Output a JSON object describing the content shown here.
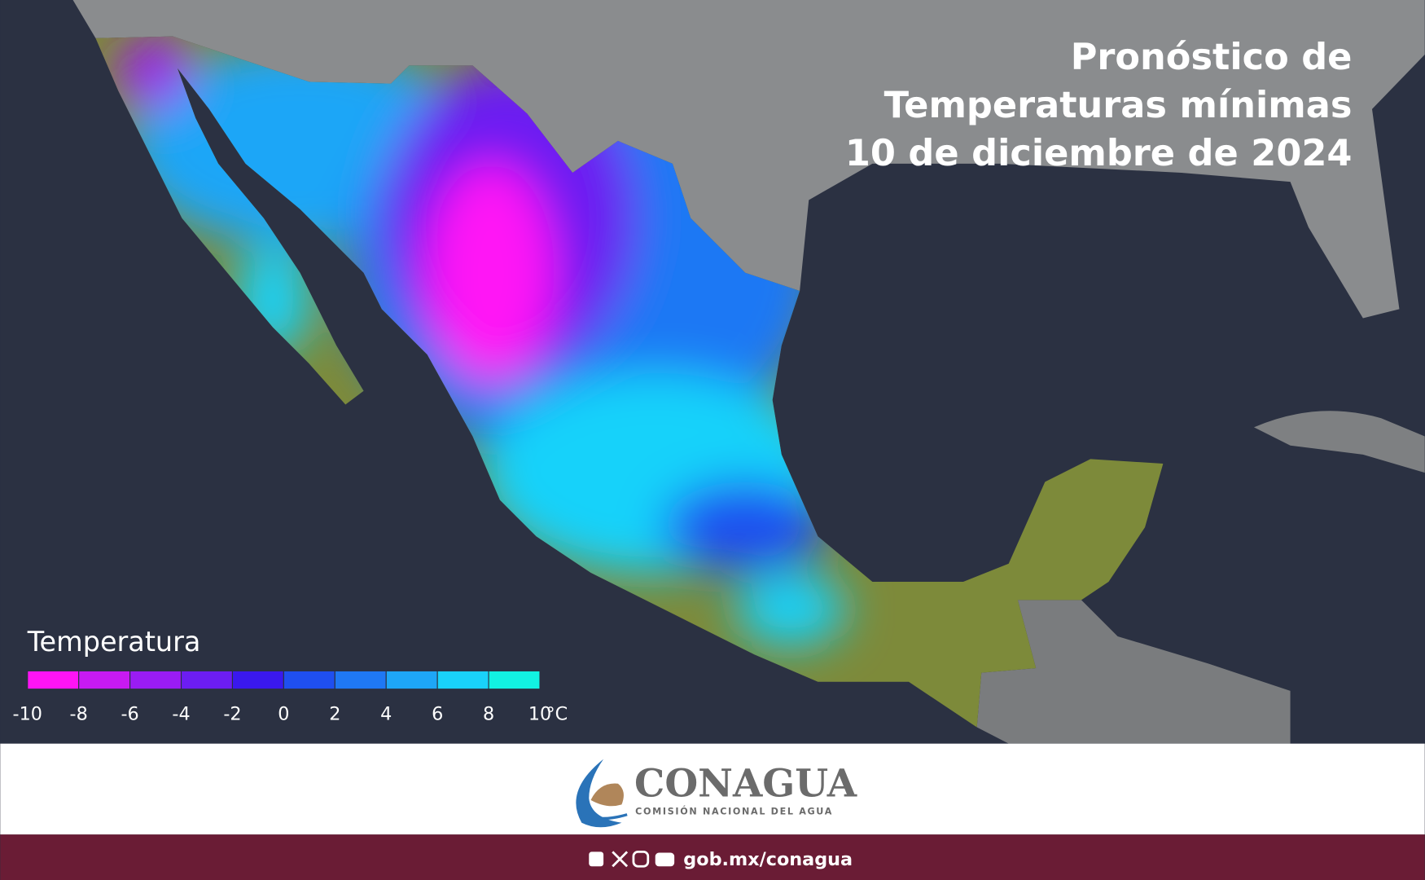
{
  "title": {
    "lines": [
      "Pronóstico de",
      "Temperaturas mínimas",
      "10 de diciembre de 2024"
    ]
  },
  "legend": {
    "title": "Temperatura",
    "ticks": [
      -10,
      -8,
      -6,
      -4,
      -2,
      0,
      2,
      4,
      6,
      8,
      10
    ],
    "unit": "°C",
    "colors": [
      "#ff14f5",
      "#c81af2",
      "#9a1cf4",
      "#6c1df2",
      "#3a18ee",
      "#1f4ff0",
      "#1f78f4",
      "#1ea6f7",
      "#19d2fa",
      "#12f2e2"
    ]
  },
  "logo": {
    "name": "CONAGUA",
    "subtitle": "COMISIÓN NACIONAL DEL AGUA"
  },
  "footer": {
    "url": "gob.mx/conagua"
  }
}
